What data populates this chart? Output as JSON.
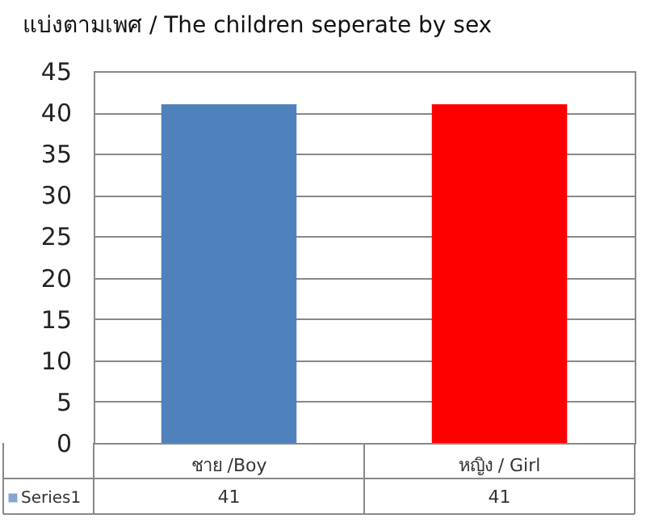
{
  "chart_data": {
    "type": "bar",
    "title": "แบ่งตามเพศ / The children seperate by sex",
    "categories": [
      "ชาย /Boy",
      "หญิง / Girl"
    ],
    "series": [
      {
        "name": "Series1",
        "color": "#4f81bd",
        "colors": [
          "#4f81bd",
          "#ff0000"
        ],
        "values": [
          41,
          41
        ]
      }
    ],
    "ylim": [
      0,
      45
    ],
    "yticks": [
      0,
      5,
      10,
      15,
      20,
      25,
      30,
      35,
      40,
      45
    ],
    "grid": "y",
    "legend": "bottom",
    "data_labels": true
  }
}
